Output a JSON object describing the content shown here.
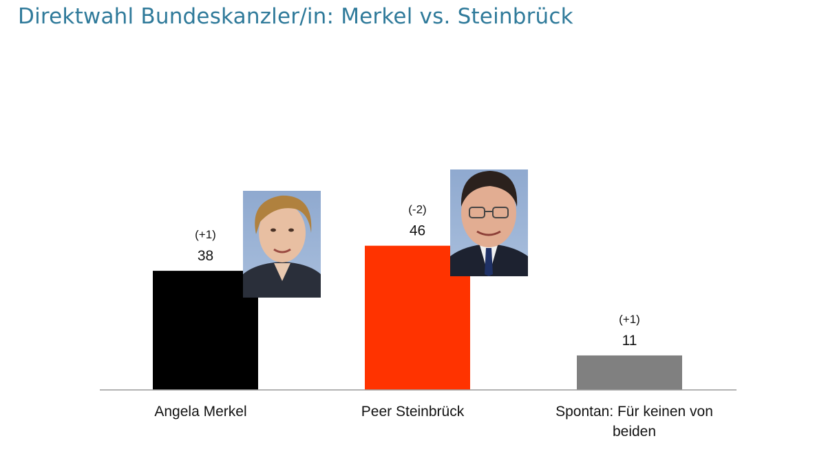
{
  "title": "Direktwahl Bundeskanzler/in: Merkel vs. Steinbrück",
  "chart_data": {
    "type": "bar",
    "title": "Direktwahl Bundeskanzler/in: Merkel vs. Steinbrück",
    "xlabel": "",
    "ylabel": "",
    "ylim": [
      0,
      60
    ],
    "grid": false,
    "categories": [
      {
        "lines": [
          "Angela Merkel"
        ]
      },
      {
        "lines": [
          "Peer Steinbrück"
        ]
      },
      {
        "lines": [
          "Spontan: Für keinen von",
          "beiden"
        ]
      }
    ],
    "values": [
      38,
      46,
      11
    ],
    "changes": [
      "(+1)",
      "(-2)",
      "(+1)"
    ],
    "colors": [
      "#000000",
      "#ff3300",
      "#808080"
    ]
  },
  "photos": {
    "merkel": {
      "name": "Angela Merkel portrait"
    },
    "steinbrueck": {
      "name": "Peer Steinbrück portrait"
    }
  }
}
